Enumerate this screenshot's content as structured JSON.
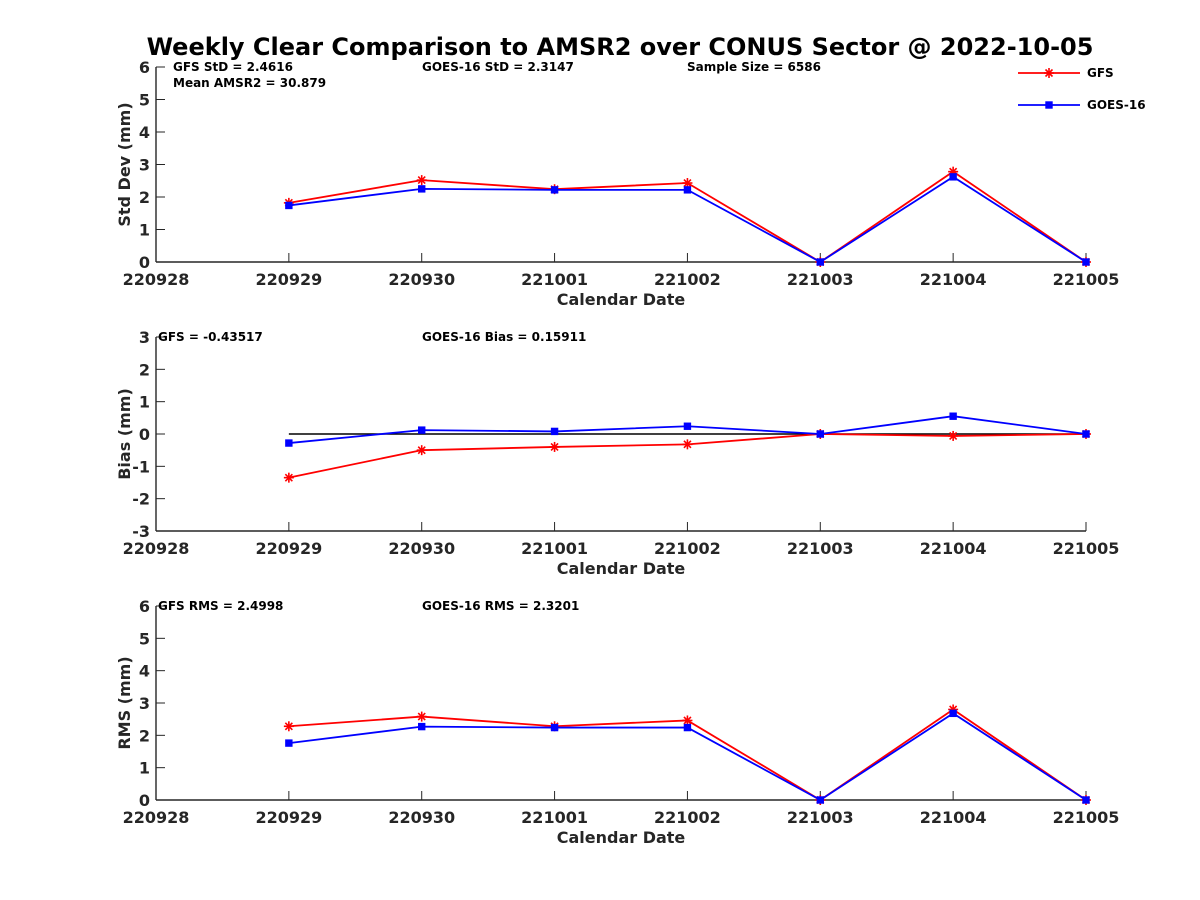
{
  "title": "Weekly Clear Comparison to AMSR2 over CONUS Sector @ 2022-10-05",
  "colors": {
    "gfs": "#ff0000",
    "goes": "#0000ff",
    "zero_line": "#000000",
    "axis": "#262626"
  },
  "legend": {
    "placement": "top-right",
    "entries": [
      {
        "name": "GFS",
        "marker": "asterisk",
        "color": "#ff0000"
      },
      {
        "name": "GOES-16",
        "marker": "square",
        "color": "#0000ff"
      }
    ]
  },
  "chart_data": [
    {
      "type": "line",
      "ylabel": "Std Dev (mm)",
      "xlabel": "Calendar Date",
      "x": [
        "220928",
        "220929",
        "220930",
        "221001",
        "221002",
        "221003",
        "221004",
        "221005"
      ],
      "ylim": [
        0,
        6
      ],
      "yticks": [
        "0",
        "1",
        "2",
        "3",
        "4",
        "5",
        "6"
      ],
      "series": [
        {
          "name": "GFS",
          "values": [
            null,
            1.82,
            2.52,
            2.24,
            2.43,
            0.0,
            2.78,
            0.0
          ]
        },
        {
          "name": "GOES-16",
          "values": [
            null,
            1.74,
            2.25,
            2.22,
            2.22,
            0.0,
            2.62,
            0.0
          ]
        }
      ],
      "annotations": [
        "GFS StD = 2.4616",
        "Mean AMSR2 = 30.879",
        "GOES-16 StD = 2.3147",
        "Sample Size = 6586"
      ]
    },
    {
      "type": "line",
      "ylabel": "Bias (mm)",
      "xlabel": "Calendar Date",
      "x": [
        "220928",
        "220929",
        "220930",
        "221001",
        "221002",
        "221003",
        "221004",
        "221005"
      ],
      "ylim": [
        -3,
        3
      ],
      "yticks": [
        "-3",
        "-2",
        "-1",
        "0",
        "1",
        "2",
        "3"
      ],
      "zero_line": true,
      "series": [
        {
          "name": "GFS",
          "values": [
            null,
            -1.35,
            -0.5,
            -0.4,
            -0.32,
            0.0,
            -0.06,
            0.0
          ]
        },
        {
          "name": "GOES-16",
          "values": [
            null,
            -0.28,
            0.12,
            0.08,
            0.24,
            0.0,
            0.55,
            0.0
          ]
        }
      ],
      "annotations": [
        "GFS = -0.43517",
        "GOES-16 Bias  = 0.15911"
      ]
    },
    {
      "type": "line",
      "ylabel": "RMS (mm)",
      "xlabel": "Calendar Date",
      "x": [
        "220928",
        "220929",
        "220930",
        "221001",
        "221002",
        "221003",
        "221004",
        "221005"
      ],
      "ylim": [
        0,
        6
      ],
      "yticks": [
        "0",
        "1",
        "2",
        "3",
        "4",
        "5",
        "6"
      ],
      "series": [
        {
          "name": "GFS",
          "values": [
            null,
            2.28,
            2.58,
            2.28,
            2.46,
            0.0,
            2.8,
            0.0
          ]
        },
        {
          "name": "GOES-16",
          "values": [
            null,
            1.76,
            2.27,
            2.24,
            2.24,
            0.0,
            2.68,
            0.0
          ]
        }
      ],
      "annotations": [
        "GFS RMS = 2.4998",
        "GOES-16 RMS = 2.3201"
      ]
    }
  ]
}
